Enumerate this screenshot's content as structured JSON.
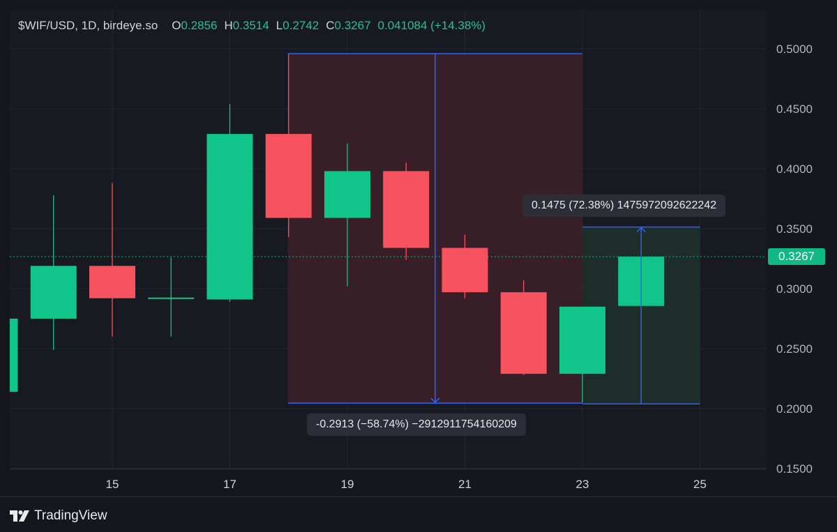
{
  "legend": {
    "symbol": "$WIF/USD, 1D, birdeye.so",
    "open_label": "O",
    "open": "0.2856",
    "high_label": "H",
    "high": "0.3514",
    "low_label": "L",
    "low": "0.2742",
    "close_label": "C",
    "close": "0.3267",
    "change": "0.041084 (+14.38%)"
  },
  "current_price_tag": "0.3267",
  "measures": {
    "down_label": "-0.2913 (−58.74%) −2912911754160209",
    "up_label": "0.1475 (72.38%) 1475972092622242"
  },
  "brand": {
    "name": "TradingView"
  },
  "colors": {
    "up": "#10c48a",
    "down": "#f7525f",
    "measure_line": "#2962ff",
    "down_zone": "#3c1f28",
    "up_zone": "#1c2e2b",
    "current_price_line": "#10b981"
  },
  "chart_data": {
    "type": "candlestick",
    "interval": "1D",
    "x_tick_labels": [
      "15",
      "17",
      "19",
      "21",
      "23",
      "25"
    ],
    "y_tick_labels": [
      "0.5000",
      "0.4500",
      "0.4000",
      "0.3500",
      "0.3000",
      "0.2500",
      "0.2000",
      "0.1500"
    ],
    "ylim": [
      0.15,
      0.52
    ],
    "grid": true,
    "candles": [
      {
        "day": 13,
        "open": 0.214,
        "high": 0.275,
        "low": 0.214,
        "close": 0.275
      },
      {
        "day": 14,
        "open": 0.275,
        "high": 0.378,
        "low": 0.249,
        "close": 0.319
      },
      {
        "day": 15,
        "open": 0.319,
        "high": 0.388,
        "low": 0.26,
        "close": 0.292
      },
      {
        "day": 16,
        "open": 0.292,
        "high": 0.326,
        "low": 0.26,
        "close": 0.292
      },
      {
        "day": 17,
        "open": 0.291,
        "high": 0.454,
        "low": 0.289,
        "close": 0.429
      },
      {
        "day": 18,
        "open": 0.429,
        "high": 0.496,
        "low": 0.343,
        "close": 0.359
      },
      {
        "day": 19,
        "open": 0.359,
        "high": 0.421,
        "low": 0.302,
        "close": 0.398
      },
      {
        "day": 20,
        "open": 0.398,
        "high": 0.405,
        "low": 0.324,
        "close": 0.334
      },
      {
        "day": 21,
        "open": 0.334,
        "high": 0.345,
        "low": 0.292,
        "close": 0.297
      },
      {
        "day": 22,
        "open": 0.297,
        "high": 0.307,
        "low": 0.228,
        "close": 0.229
      },
      {
        "day": 23,
        "open": 0.229,
        "high": 0.285,
        "low": 0.205,
        "close": 0.285
      },
      {
        "day": 24,
        "open": 0.2856,
        "high": 0.3514,
        "low": 0.2742,
        "close": 0.3267
      }
    ],
    "current_price": 0.3267,
    "measure_down": {
      "from_day": 18,
      "to_day": 23,
      "from_price": 0.4959,
      "to_price": 0.2046
    },
    "measure_up": {
      "from_day": 23,
      "to_day": 25,
      "from_price": 0.2039,
      "to_price": 0.3514
    }
  }
}
